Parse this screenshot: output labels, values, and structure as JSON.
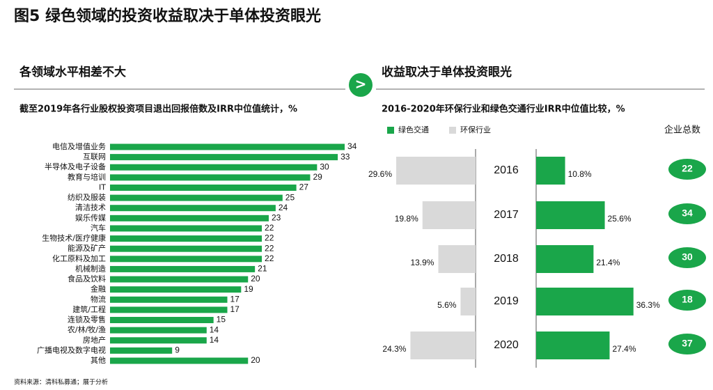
{
  "title": "图5 绿色领域的投资收益取决于单体投资眼光",
  "panels": [
    {
      "header": "各领域水平相差不大"
    },
    {
      "header": "收益取决于单体投资眼光"
    }
  ],
  "arrow": ">",
  "source": "资料来源：清科私募通；展于分析",
  "chart_data": [
    {
      "type": "bar",
      "title": "截至2019年各行业股权投资项目退出回报倍数及IRR中位值统计，%",
      "categories": [
        "电信及增值业务",
        "互联网",
        "半导体及电子设备",
        "教育与培训",
        "IT",
        "纺织及服装",
        "清洁技术",
        "娱乐传媒",
        "汽车",
        "生物技术/医疗健康",
        "能源及矿产",
        "化工原料及加工",
        "机械制造",
        "食品及饮料",
        "金融",
        "物流",
        "建筑/工程",
        "连锁及零售",
        "农/林/牧/渔",
        "房地产",
        "广播电视及数字电视",
        "其他"
      ],
      "values": [
        34,
        33,
        30,
        29,
        27,
        25,
        24,
        23,
        22,
        22,
        22,
        22,
        21,
        20,
        19,
        17,
        17,
        15,
        14,
        14,
        9,
        20
      ],
      "color": "#1aa64a",
      "xlim": [
        0,
        34
      ]
    },
    {
      "type": "butterfly",
      "title": "2016-2020年环保行业和绿色交通行业IRR中位值比较，%",
      "categories": [
        "2016",
        "2017",
        "2018",
        "2019",
        "2020"
      ],
      "series": [
        {
          "name": "绿色交通",
          "color": "#1aa64a",
          "values": [
            10.8,
            25.6,
            21.4,
            36.3,
            27.4
          ],
          "value_labels": [
            "10.8%",
            "25.6%",
            "21.4%",
            "36.3%",
            "27.4%"
          ]
        },
        {
          "name": "环保行业",
          "color": "#d9d9d9",
          "values": [
            29.6,
            19.8,
            13.9,
            5.6,
            24.3
          ],
          "value_labels": [
            "29.6%",
            "19.8%",
            "13.9%",
            "5.6%",
            "24.3%"
          ]
        }
      ],
      "xlim": [
        0,
        40
      ],
      "counts_title": "企业总数",
      "counts": [
        22,
        34,
        30,
        18,
        37
      ]
    }
  ]
}
